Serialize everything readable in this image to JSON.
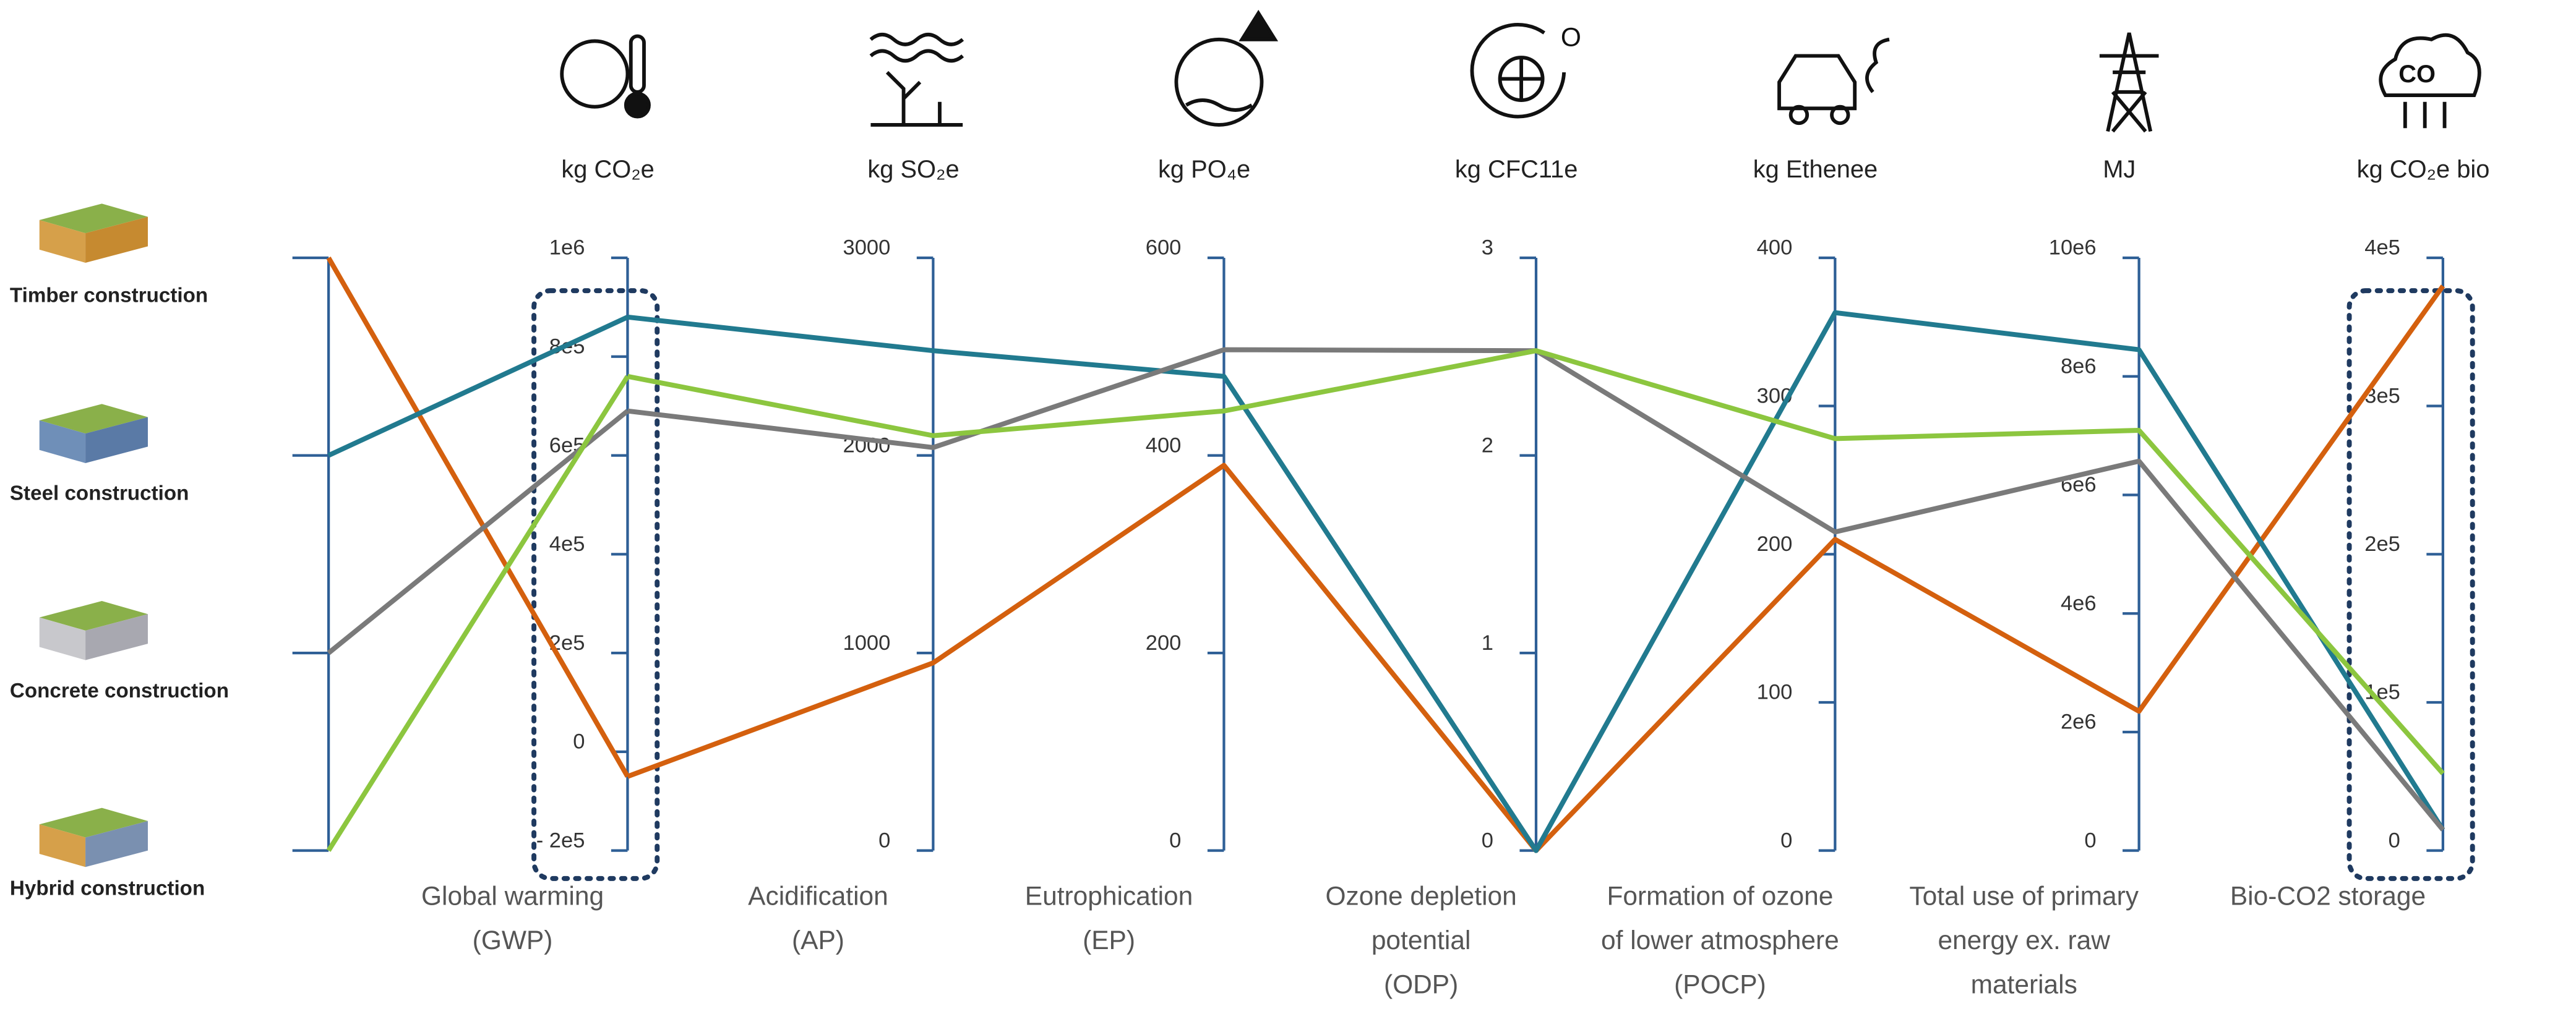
{
  "chart_data": {
    "type": "parallel",
    "series": [
      {
        "name": "Timber construction",
        "color": "#d4600e",
        "values": [
          -50000,
          950,
          390,
          0,
          210,
          2350000,
          381000
        ]
      },
      {
        "name": "Steel construction",
        "color": "#217a8f",
        "values": [
          880000,
          2530,
          480,
          0,
          363,
          8450000,
          14000
        ]
      },
      {
        "name": "Concrete construction",
        "color": "#7a7a7a",
        "values": [
          690000,
          2040,
          507,
          2.53,
          215,
          6570000,
          14000
        ]
      },
      {
        "name": "Hybrid construction",
        "color": "#8cc63f",
        "values": [
          760000,
          2100,
          445,
          2.53,
          278,
          7090000,
          52000
        ]
      }
    ],
    "axes": [
      {
        "label": "Global warming\n(GWP)",
        "unit": "kg CO₂e",
        "lim": [
          -200000,
          1000000
        ],
        "highlight": true,
        "ticks": [
          {
            "value": -200000,
            "label": "- 2e5"
          },
          0,
          {
            "value": 200000,
            "label": "2e5"
          },
          {
            "value": 400000,
            "label": "4e5"
          },
          {
            "value": 600000,
            "label": "6e5"
          },
          {
            "value": 800000,
            "label": "8e5"
          },
          {
            "value": 1000000,
            "label": "1e6"
          }
        ]
      },
      {
        "label": "Acidification\n(AP)",
        "unit": "kg SO₂e",
        "lim": [
          0,
          3000
        ],
        "highlight": false,
        "ticks": [
          0,
          1000,
          2000,
          3000
        ]
      },
      {
        "label": "Eutrophication\n(EP)",
        "unit": "kg PO₄e",
        "lim": [
          0,
          600
        ],
        "highlight": false,
        "ticks": [
          0,
          200,
          400,
          600
        ]
      },
      {
        "label": "Ozone depletion\npotential\n(ODP)",
        "unit": "kg CFC11e",
        "lim": [
          0,
          3
        ],
        "highlight": false,
        "ticks": [
          0,
          1,
          2,
          3
        ]
      },
      {
        "label": "Formation of ozone\nof lower atmosphere\n(POCP)",
        "unit": "kg Ethenee",
        "lim": [
          0,
          400
        ],
        "highlight": false,
        "ticks": [
          0,
          100,
          200,
          300,
          400
        ]
      },
      {
        "label": "Total use of primary\nenergy ex. raw\nmaterials",
        "unit": "MJ",
        "lim": [
          0,
          10000000
        ],
        "highlight": false,
        "ticks": [
          0,
          {
            "value": 2000000,
            "label": "2e6"
          },
          {
            "value": 4000000,
            "label": "4e6"
          },
          {
            "value": 6000000,
            "label": "6e6"
          },
          {
            "value": 8000000,
            "label": "8e6"
          },
          {
            "value": 10000000,
            "label": "10e6"
          }
        ]
      },
      {
        "label": "Bio-CO2 storage",
        "unit": "kg CO₂e bio",
        "lim": [
          0,
          400000
        ],
        "highlight": true,
        "ticks": [
          0,
          {
            "value": 100000,
            "label": "1e5"
          },
          {
            "value": 200000,
            "label": "2e5"
          },
          {
            "value": 300000,
            "label": "3e5"
          },
          {
            "value": 400000,
            "label": "4e5"
          }
        ]
      }
    ]
  }
}
